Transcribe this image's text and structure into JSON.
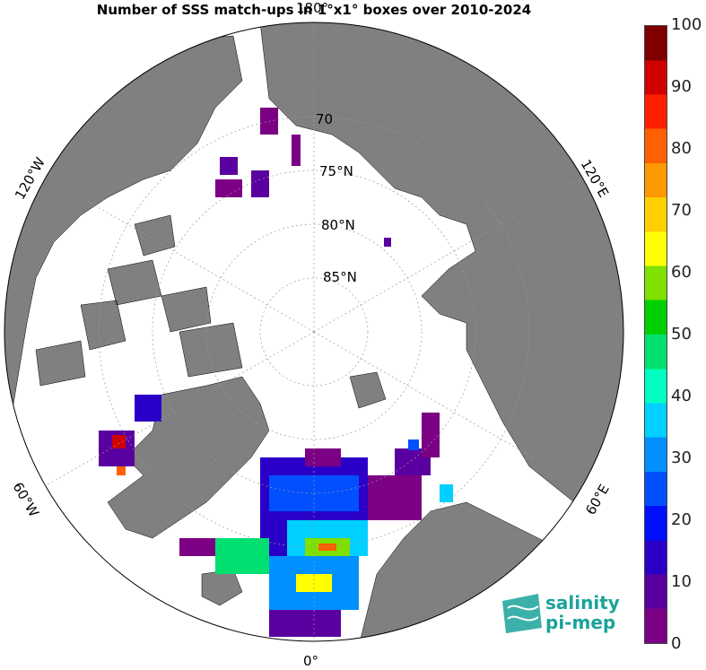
{
  "title": "Number of SSS match-ups in 1°x1° boxes over 2010-2024",
  "longitude_labels": {
    "top": "180°",
    "bottom": "0°",
    "left_upper": "120°W",
    "left_lower": "60°W",
    "right_upper": "120°E",
    "right_lower": "60°E"
  },
  "latitude_labels": [
    "70",
    "75°N",
    "80°N",
    "85°N"
  ],
  "colorbar": {
    "ticks": [
      "0",
      "10",
      "20",
      "30",
      "40",
      "50",
      "60",
      "70",
      "80",
      "90",
      "100"
    ],
    "colors": [
      "#7b0083",
      "#5a00a0",
      "#2a00c8",
      "#0010ff",
      "#0050ff",
      "#0090ff",
      "#00d0ff",
      "#00ffc0",
      "#00e070",
      "#00d000",
      "#80e000",
      "#ffff00",
      "#ffd000",
      "#ff9900",
      "#ff6000",
      "#ff2000",
      "#d00000",
      "#800000"
    ]
  },
  "logo": {
    "line1": "salinity",
    "line2": "pi-mep"
  },
  "colors": {
    "land": "#808080",
    "ocean": "#ffffff",
    "grid": "#999999"
  }
}
